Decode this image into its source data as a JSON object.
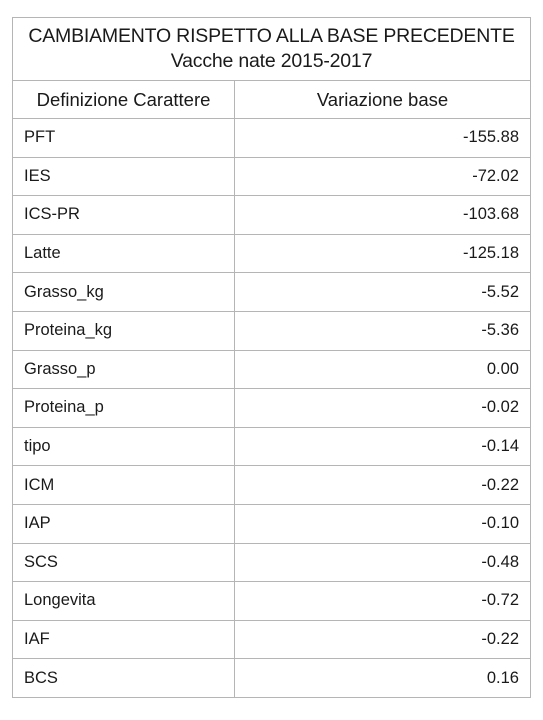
{
  "table": {
    "title_line1": "CAMBIAMENTO RISPETTO ALLA BASE PRECEDENTE",
    "title_line2": "Vacche nate 2015-2017",
    "headers": {
      "trait": "Definizione Carattere",
      "change": "Variazione base"
    },
    "rows": [
      {
        "trait": "PFT",
        "change": "-155.88"
      },
      {
        "trait": "IES",
        "change": "-72.02"
      },
      {
        "trait": "ICS-PR",
        "change": "-103.68"
      },
      {
        "trait": "Latte",
        "change": "-125.18"
      },
      {
        "trait": "Grasso_kg",
        "change": "-5.52"
      },
      {
        "trait": "Proteina_kg",
        "change": "-5.36"
      },
      {
        "trait": "Grasso_p",
        "change": "0.00"
      },
      {
        "trait": "Proteina_p",
        "change": "-0.02"
      },
      {
        "trait": "tipo",
        "change": "-0.14"
      },
      {
        "trait": "ICM",
        "change": "-0.22"
      },
      {
        "trait": "IAP",
        "change": "-0.10"
      },
      {
        "trait": "SCS",
        "change": "-0.48"
      },
      {
        "trait": "Longevita",
        "change": "-0.72"
      },
      {
        "trait": "IAF",
        "change": "-0.22"
      },
      {
        "trait": "BCS",
        "change": "0.16"
      }
    ]
  }
}
